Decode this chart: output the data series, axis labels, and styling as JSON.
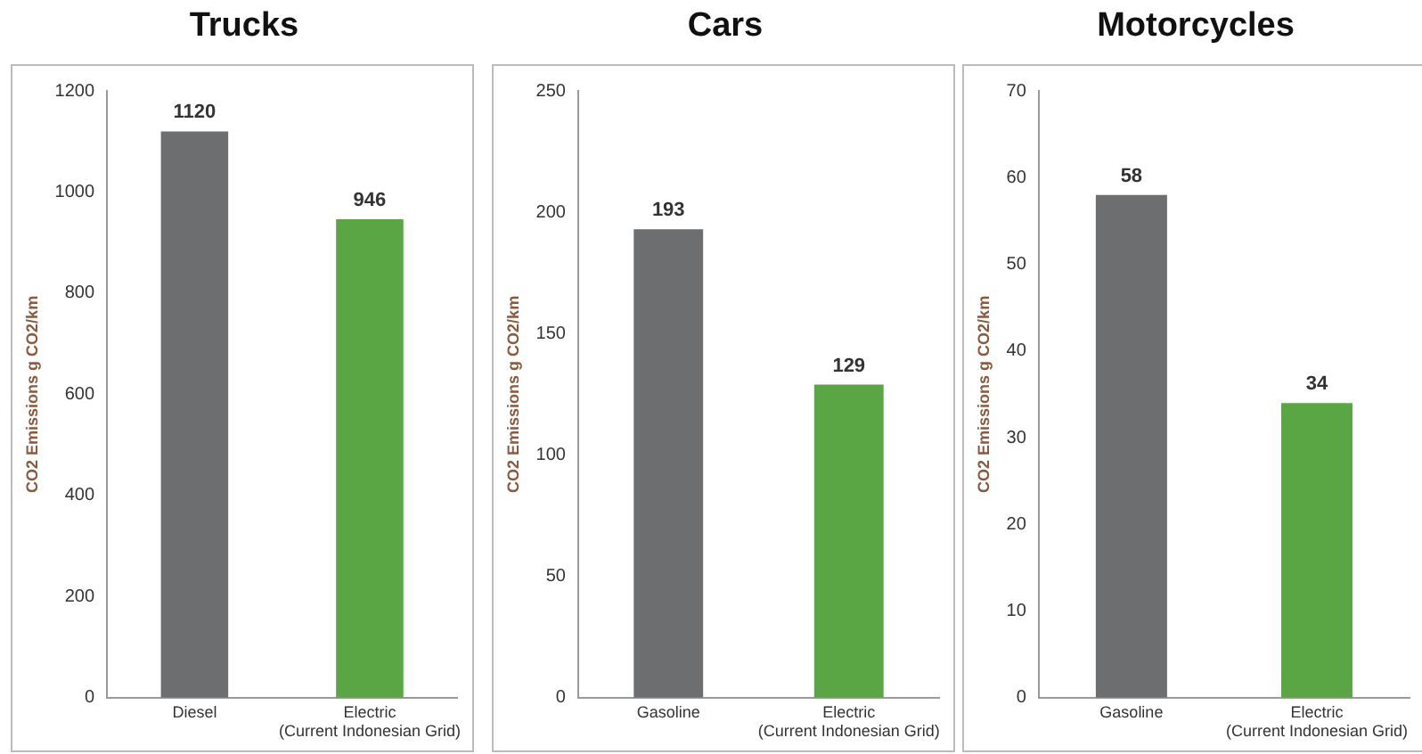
{
  "chart_data": [
    {
      "type": "bar",
      "title": "Trucks",
      "ylabel": "CO2 Emissions g CO2/km",
      "categories": [
        "Diesel",
        "Electric\n(Current Indonesian Grid)"
      ],
      "values": [
        1120,
        946
      ],
      "colors": [
        "#6d6e70",
        "#5aa645"
      ],
      "ylim": [
        0,
        1200
      ],
      "yticks": [
        0,
        200,
        400,
        600,
        800,
        1000,
        1200
      ],
      "data_labels": true,
      "grid": false,
      "legend": false
    },
    {
      "type": "bar",
      "title": "Cars",
      "ylabel": "CO2 Emissions g CO2/km",
      "categories": [
        "Gasoline",
        "Electric\n(Current Indonesian Grid)"
      ],
      "values": [
        193,
        129
      ],
      "colors": [
        "#6d6e70",
        "#5aa645"
      ],
      "ylim": [
        0,
        250
      ],
      "yticks": [
        0,
        50,
        100,
        150,
        200,
        250
      ],
      "data_labels": true,
      "grid": false,
      "legend": false
    },
    {
      "type": "bar",
      "title": "Motorcycles",
      "ylabel": "CO2 Emissions g CO2/km",
      "categories": [
        "Gasoline",
        "Electric\n(Current Indonesian Grid)"
      ],
      "values": [
        58,
        34
      ],
      "colors": [
        "#6d6e70",
        "#5aa645"
      ],
      "ylim": [
        0,
        70
      ],
      "yticks": [
        0,
        10,
        20,
        30,
        40,
        50,
        60,
        70
      ],
      "data_labels": true,
      "grid": false,
      "legend": false
    }
  ]
}
